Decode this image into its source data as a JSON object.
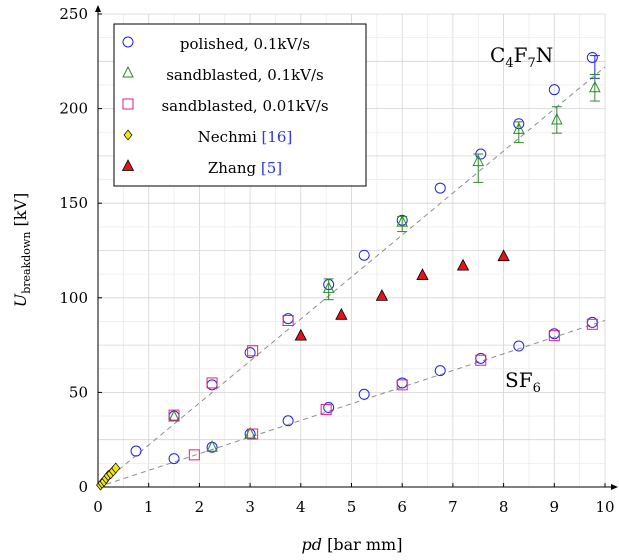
{
  "chart_data": {
    "type": "scatter",
    "xlabel_italic": "pd",
    "xlabel_rest": " [bar mm]",
    "ylabel_main": "U",
    "ylabel_sub": "breakdown",
    "ylabel_unit": " [kV]",
    "xlim": [
      0,
      10
    ],
    "ylim": [
      0,
      250
    ],
    "xticks": [
      "0",
      "1",
      "2",
      "3",
      "4",
      "5",
      "6",
      "7",
      "8",
      "9",
      "10"
    ],
    "yticks": [
      "0",
      "50",
      "100",
      "150",
      "200",
      "250"
    ],
    "grid": true,
    "legend_position": "top-left",
    "annotations": {
      "c4f7n": {
        "main": "C",
        "s1": "4",
        "f": "F",
        "s2": "7",
        "n": "N"
      },
      "sf6": {
        "main": "SF",
        "s1": "6"
      }
    },
    "trend_lines": [
      {
        "gas": "C4F7N",
        "x": [
          0,
          10
        ],
        "y": [
          0,
          222
        ]
      },
      {
        "gas": "SF6",
        "x": [
          0,
          10
        ],
        "y": [
          0,
          88
        ]
      }
    ],
    "series": [
      {
        "name": "polished, 0.1kV/s",
        "marker": "circle",
        "color": "#2222dd",
        "points": [
          [
            0.75,
            19
          ],
          [
            1.5,
            37.5
          ],
          [
            2.25,
            54
          ],
          [
            3.0,
            71
          ],
          [
            3.75,
            89
          ],
          [
            4.55,
            107
          ],
          [
            5.25,
            122.5
          ],
          [
            6.0,
            141
          ],
          [
            6.75,
            158
          ],
          [
            7.55,
            176
          ],
          [
            8.3,
            192
          ],
          [
            9.0,
            210
          ],
          [
            9.75,
            227
          ],
          [
            1.5,
            15
          ],
          [
            2.25,
            21
          ],
          [
            3.0,
            28
          ],
          [
            3.75,
            35
          ],
          [
            4.55,
            42
          ],
          [
            5.25,
            49
          ],
          [
            6.0,
            55
          ],
          [
            6.75,
            61.5
          ],
          [
            7.55,
            68
          ],
          [
            8.3,
            74.5
          ],
          [
            9.0,
            81
          ],
          [
            9.75,
            87
          ]
        ],
        "errorbars": [
          {
            "x": 9.8,
            "low": 216,
            "high": 228
          }
        ]
      },
      {
        "name": "sandblasted, 0.1kV/s",
        "marker": "triangle-open",
        "color": "#2a8a2a",
        "points": [
          [
            1.5,
            37
          ],
          [
            2.25,
            21
          ],
          [
            3.0,
            28
          ],
          [
            4.55,
            105
          ],
          [
            6.0,
            140
          ],
          [
            7.5,
            172
          ],
          [
            8.3,
            189
          ],
          [
            9.05,
            194
          ],
          [
            9.8,
            211
          ]
        ],
        "errorbars": [
          {
            "x": 4.55,
            "low": 99,
            "high": 110
          },
          {
            "x": 6.0,
            "low": 135,
            "high": 143
          },
          {
            "x": 7.5,
            "low": 161,
            "high": 176
          },
          {
            "x": 8.3,
            "low": 182,
            "high": 193
          },
          {
            "x": 9.05,
            "low": 187,
            "high": 201
          },
          {
            "x": 9.8,
            "low": 204,
            "high": 218
          }
        ]
      },
      {
        "name": "sandblasted, 0.01kV/s",
        "marker": "square",
        "color": "#dd2288",
        "points": [
          [
            1.5,
            38
          ],
          [
            2.25,
            55
          ],
          [
            3.05,
            72
          ],
          [
            3.75,
            88
          ],
          [
            1.9,
            17
          ],
          [
            3.05,
            28
          ],
          [
            4.5,
            41
          ],
          [
            6.0,
            54
          ],
          [
            7.55,
            67
          ],
          [
            9.0,
            80
          ],
          [
            9.75,
            86
          ]
        ],
        "errorbars": []
      },
      {
        "name_text": "Nechmi ",
        "ref": "[16]",
        "marker": "diamond",
        "color": "#f2e40e",
        "points": [
          [
            0.05,
            1
          ],
          [
            0.08,
            2
          ],
          [
            0.12,
            3
          ],
          [
            0.16,
            4.5
          ],
          [
            0.2,
            6
          ],
          [
            0.25,
            7
          ],
          [
            0.3,
            8.5
          ],
          [
            0.35,
            10
          ]
        ],
        "errorbars": []
      },
      {
        "name_text": "Zhang ",
        "ref": "[5]",
        "marker": "triangle-filled",
        "color": "#e0141a",
        "points": [
          [
            4.0,
            80
          ],
          [
            4.8,
            91
          ],
          [
            5.6,
            101
          ],
          [
            6.4,
            112
          ],
          [
            7.2,
            117
          ],
          [
            8.0,
            122
          ]
        ],
        "errorbars": []
      }
    ]
  }
}
